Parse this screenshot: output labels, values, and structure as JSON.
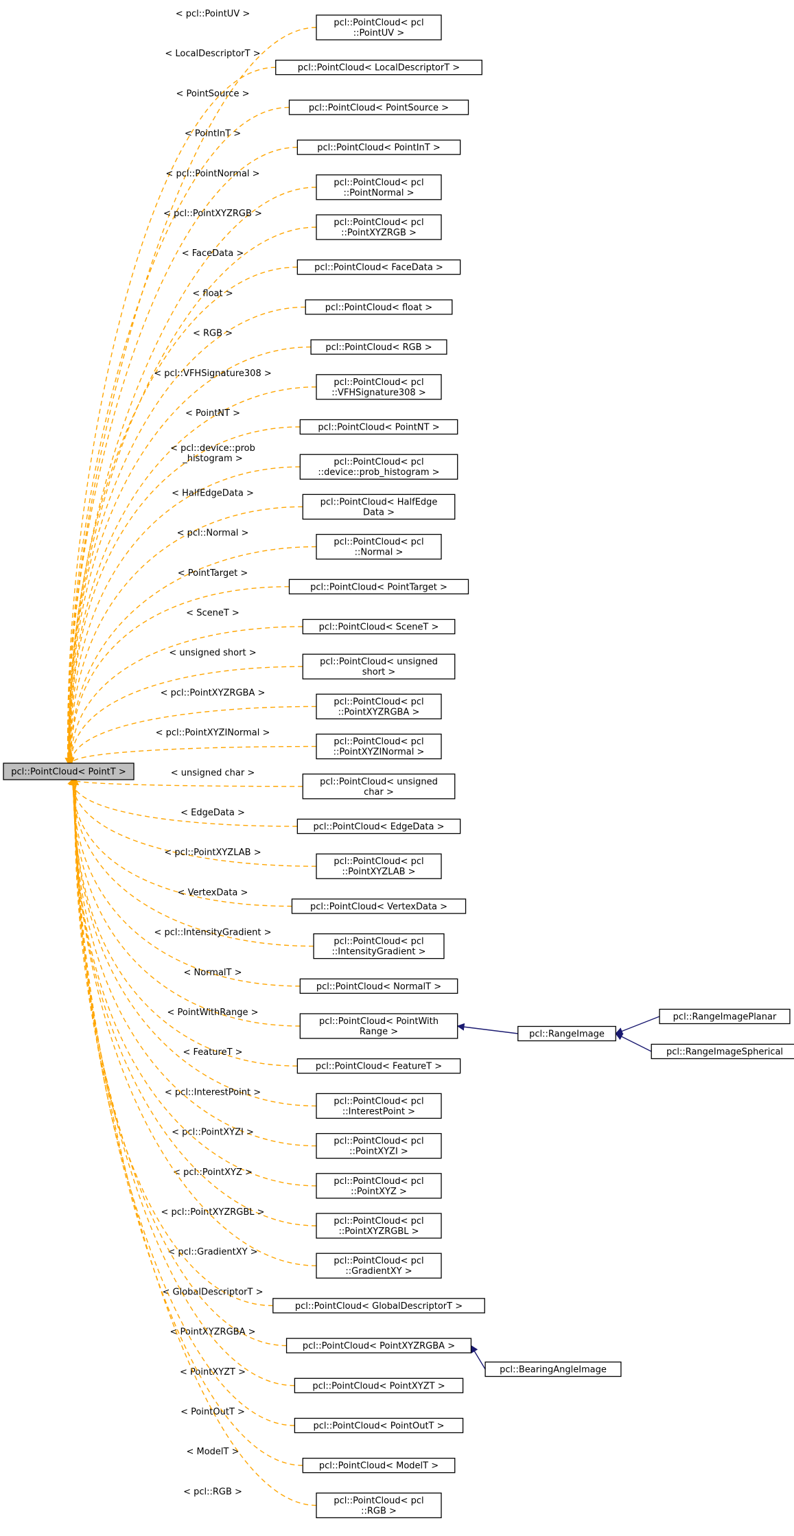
{
  "root": {
    "label": "pcl::PointCloud< PointT >"
  },
  "instantiations": [
    {
      "edge_label": [
        "< pcl::PointUV >"
      ],
      "node_label": [
        "pcl::PointCloud< pcl",
        "::PointUV >"
      ]
    },
    {
      "edge_label": [
        "< LocalDescriptorT >"
      ],
      "node_label": [
        "pcl::PointCloud< LocalDescriptorT >"
      ]
    },
    {
      "edge_label": [
        "< PointSource >"
      ],
      "node_label": [
        "pcl::PointCloud< PointSource >"
      ]
    },
    {
      "edge_label": [
        "< PointInT >"
      ],
      "node_label": [
        "pcl::PointCloud< PointInT >"
      ]
    },
    {
      "edge_label": [
        "< pcl::PointNormal >"
      ],
      "node_label": [
        "pcl::PointCloud< pcl",
        "::PointNormal >"
      ]
    },
    {
      "edge_label": [
        "< pcl::PointXYZRGB >"
      ],
      "node_label": [
        "pcl::PointCloud< pcl",
        "::PointXYZRGB >"
      ]
    },
    {
      "edge_label": [
        "< FaceData >"
      ],
      "node_label": [
        "pcl::PointCloud< FaceData >"
      ]
    },
    {
      "edge_label": [
        "< float >"
      ],
      "node_label": [
        "pcl::PointCloud< float >"
      ]
    },
    {
      "edge_label": [
        "< RGB >"
      ],
      "node_label": [
        "pcl::PointCloud< RGB >"
      ]
    },
    {
      "edge_label": [
        "< pcl::VFHSignature308 >"
      ],
      "node_label": [
        "pcl::PointCloud< pcl",
        "::VFHSignature308 >"
      ]
    },
    {
      "edge_label": [
        "< PointNT >"
      ],
      "node_label": [
        "pcl::PointCloud< PointNT >"
      ]
    },
    {
      "edge_label": [
        "< pcl::device::prob",
        "_histogram >"
      ],
      "node_label": [
        "pcl::PointCloud< pcl",
        "::device::prob_histogram >"
      ]
    },
    {
      "edge_label": [
        "< HalfEdgeData >"
      ],
      "node_label": [
        "pcl::PointCloud< HalfEdge",
        "Data >"
      ]
    },
    {
      "edge_label": [
        "< pcl::Normal >"
      ],
      "node_label": [
        "pcl::PointCloud< pcl",
        "::Normal >"
      ]
    },
    {
      "edge_label": [
        "< PointTarget >"
      ],
      "node_label": [
        "pcl::PointCloud< PointTarget >"
      ]
    },
    {
      "edge_label": [
        "< SceneT >"
      ],
      "node_label": [
        "pcl::PointCloud< SceneT >"
      ]
    },
    {
      "edge_label": [
        "< unsigned short >"
      ],
      "node_label": [
        "pcl::PointCloud< unsigned",
        "short >"
      ]
    },
    {
      "edge_label": [
        "< pcl::PointXYZRGBA >"
      ],
      "node_label": [
        "pcl::PointCloud< pcl",
        "::PointXYZRGBA >"
      ]
    },
    {
      "edge_label": [
        "< pcl::PointXYZINormal >"
      ],
      "node_label": [
        "pcl::PointCloud< pcl",
        "::PointXYZINormal >"
      ]
    },
    {
      "edge_label": [
        "< unsigned char >"
      ],
      "node_label": [
        "pcl::PointCloud< unsigned",
        "char >"
      ]
    },
    {
      "edge_label": [
        "< EdgeData >"
      ],
      "node_label": [
        "pcl::PointCloud< EdgeData >"
      ]
    },
    {
      "edge_label": [
        "< pcl::PointXYZLAB >"
      ],
      "node_label": [
        "pcl::PointCloud< pcl",
        "::PointXYZLAB >"
      ]
    },
    {
      "edge_label": [
        "< VertexData >"
      ],
      "node_label": [
        "pcl::PointCloud< VertexData >"
      ]
    },
    {
      "edge_label": [
        "< pcl::IntensityGradient >"
      ],
      "node_label": [
        "pcl::PointCloud< pcl",
        "::IntensityGradient >"
      ]
    },
    {
      "edge_label": [
        "< NormalT >"
      ],
      "node_label": [
        "pcl::PointCloud< NormalT >"
      ]
    },
    {
      "edge_label": [
        "< PointWithRange >"
      ],
      "node_label": [
        "pcl::PointCloud< PointWith",
        "Range >"
      ]
    },
    {
      "edge_label": [
        "< FeatureT >"
      ],
      "node_label": [
        "pcl::PointCloud< FeatureT >"
      ]
    },
    {
      "edge_label": [
        "< pcl::InterestPoint >"
      ],
      "node_label": [
        "pcl::PointCloud< pcl",
        "::InterestPoint >"
      ]
    },
    {
      "edge_label": [
        "< pcl::PointXYZI >"
      ],
      "node_label": [
        "pcl::PointCloud< pcl",
        "::PointXYZI >"
      ]
    },
    {
      "edge_label": [
        "< pcl::PointXYZ >"
      ],
      "node_label": [
        "pcl::PointCloud< pcl",
        "::PointXYZ >"
      ]
    },
    {
      "edge_label": [
        "< pcl::PointXYZRGBL >"
      ],
      "node_label": [
        "pcl::PointCloud< pcl",
        "::PointXYZRGBL >"
      ]
    },
    {
      "edge_label": [
        "< pcl::GradientXY >"
      ],
      "node_label": [
        "pcl::PointCloud< pcl",
        "::GradientXY >"
      ]
    },
    {
      "edge_label": [
        "< GlobalDescriptorT >"
      ],
      "node_label": [
        "pcl::PointCloud< GlobalDescriptorT >"
      ]
    },
    {
      "edge_label": [
        "< PointXYZRGBA >"
      ],
      "node_label": [
        "pcl::PointCloud< PointXYZRGBA >"
      ]
    },
    {
      "edge_label": [
        "< PointXYZT >"
      ],
      "node_label": [
        "pcl::PointCloud< PointXYZT >"
      ]
    },
    {
      "edge_label": [
        "< PointOutT >"
      ],
      "node_label": [
        "pcl::PointCloud< PointOutT >"
      ]
    },
    {
      "edge_label": [
        "< ModelT >"
      ],
      "node_label": [
        "pcl::PointCloud< ModelT >"
      ]
    },
    {
      "edge_label": [
        "< pcl::RGB >"
      ],
      "node_label": [
        "pcl::PointCloud< pcl",
        "::RGB >"
      ]
    }
  ],
  "derived": [
    {
      "label": "pcl::RangeImage"
    },
    {
      "label": "pcl::RangeImagePlanar"
    },
    {
      "label": "pcl::RangeImageSpherical"
    },
    {
      "label": "pcl::BearingAngleImage"
    }
  ],
  "inheritance": [
    {
      "child": "pcl::RangeImage",
      "parent": "pcl::PointCloud< PointWith Range >"
    },
    {
      "child": "pcl::RangeImagePlanar",
      "parent": "pcl::RangeImage"
    },
    {
      "child": "pcl::RangeImageSpherical",
      "parent": "pcl::RangeImage"
    },
    {
      "child": "pcl::BearingAngleImage",
      "parent": "pcl::PointCloud< PointXYZRGBA >"
    }
  ],
  "colors": {
    "template_edge": "#ffa500",
    "inheritance_edge": "#191970",
    "root_fill": "#bfbfbf",
    "node_fill": "#ffffff",
    "node_stroke": "#000000"
  }
}
